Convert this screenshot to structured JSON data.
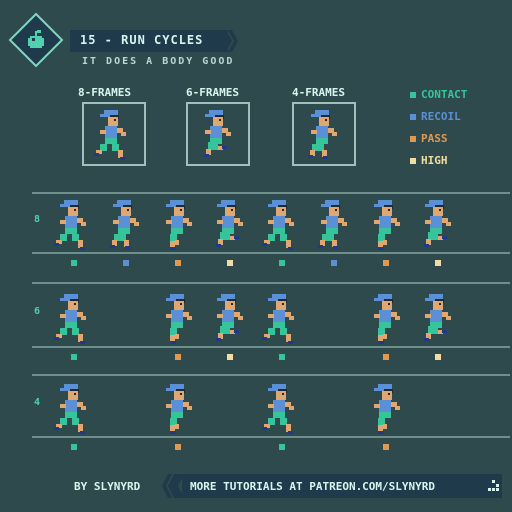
{
  "header": {
    "title": "15 - RUN CYCLES",
    "subtitle": "IT DOES A BODY GOOD",
    "logo_icon": "apple-icon"
  },
  "preview": {
    "frames": [
      {
        "label": "8-FRAMES"
      },
      {
        "label": "6-FRAMES"
      },
      {
        "label": "4-FRAMES"
      }
    ]
  },
  "legend": {
    "items": [
      {
        "label": "CONTACT",
        "color": "#36c49b"
      },
      {
        "label": "RECOIL",
        "color": "#5b8fd6"
      },
      {
        "label": "PASS",
        "color": "#e09a4f"
      },
      {
        "label": "HIGH",
        "color": "#f2dca0"
      }
    ]
  },
  "rows": [
    {
      "label": "8",
      "phases": [
        "contact",
        "recoil",
        "pass",
        "high",
        "contact",
        "recoil",
        "pass",
        "high"
      ]
    },
    {
      "label": "6",
      "phases": [
        "contact",
        "pass",
        "high",
        "contact",
        "pass",
        "high"
      ]
    },
    {
      "label": "4",
      "phases": [
        "contact",
        "pass",
        "contact",
        "pass"
      ]
    }
  ],
  "colors": {
    "contact": "#36c49b",
    "recoil": "#5b8fd6",
    "pass": "#e09a4f",
    "high": "#f2dca0",
    "background": "#2f4a4d",
    "accent": "#1f3a4a"
  },
  "footer": {
    "by": "BY SLYNYRD",
    "cta": "MORE TUTORIALS AT PATREON.COM/SLYNYRD"
  }
}
